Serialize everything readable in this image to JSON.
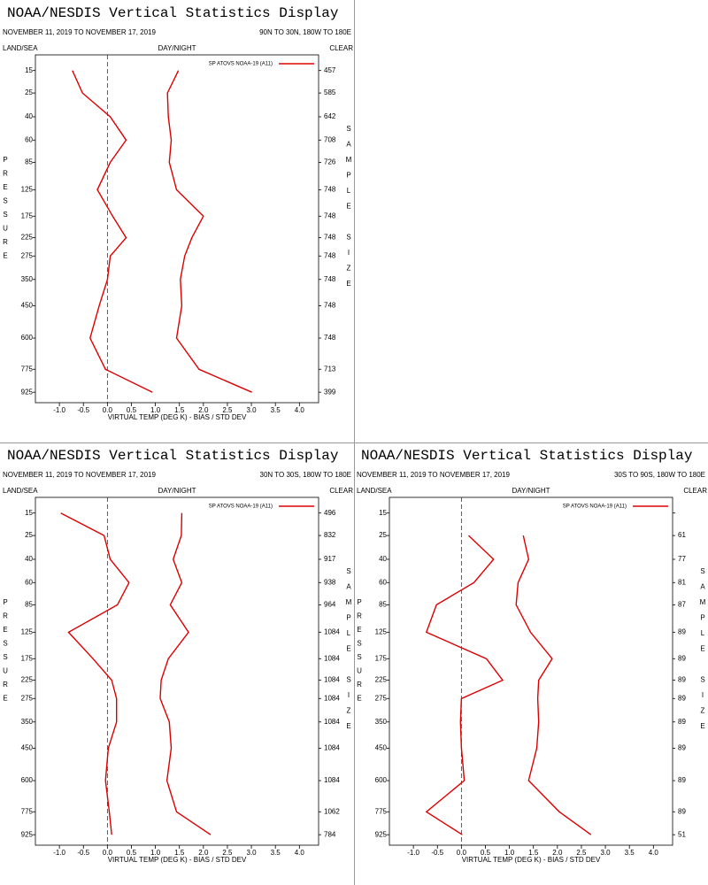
{
  "chart_data": [
    {
      "type": "line",
      "title": "NOAA/NESDIS Vertical Statistics Display",
      "subtitle": "NOVEMBER 11, 2019 TO NOVEMBER 17, 2019",
      "region": "90N TO 30N, 180W TO 180E",
      "land_sea": "LAND/SEA",
      "day_night": "DAY/NIGHT",
      "clear": "CLEAR",
      "y_label": "PRESSURE",
      "y2_label": "SAMPLE SIZE",
      "x_label": "VIRTUAL TEMP (DEG K) - BIAS / STD DEV",
      "legend_label": "SP ATOVS NOAA-19 (A11)",
      "legend_color": "#dd0000",
      "xlim": [
        -1.5,
        4.4
      ],
      "xticks": [
        {
          "value": -1,
          "label": "-1.0"
        },
        -0.5,
        {
          "value": 0,
          "label": "0.0"
        },
        0.5,
        {
          "value": 1,
          "label": "1.0"
        },
        1.5,
        {
          "value": 2,
          "label": "2.0"
        },
        2.5,
        {
          "value": 3,
          "label": "3.0"
        },
        3.5,
        {
          "value": 4,
          "label": "4.0"
        }
      ],
      "ylim": [
        10,
        1000
      ],
      "yscale": "exner",
      "yticks": [
        15,
        25,
        40,
        60,
        85,
        125,
        175,
        225,
        275,
        350,
        450,
        600,
        775,
        925
      ],
      "sample_sizes": [
        457,
        585,
        642,
        708,
        726,
        748,
        748,
        748,
        748,
        748,
        748,
        748,
        713,
        399
      ],
      "zero_line": true,
      "series": [
        {
          "color": "#dd0000",
          "values": [
            -0.73,
            -0.52,
            0.06,
            0.39,
            0.06,
            -0.21,
            0.11,
            0.39,
            0.06,
            0.0,
            -0.17,
            -0.36,
            -0.04,
            0.94
          ]
        },
        {
          "color": "#dd0000",
          "values": [
            1.48,
            1.25,
            1.27,
            1.33,
            1.29,
            1.44,
            2.0,
            1.76,
            1.61,
            1.52,
            1.55,
            1.44,
            1.91,
            3.01
          ]
        }
      ]
    },
    {
      "type": "line",
      "title": "NOAA/NESDIS Vertical Statistics Display",
      "subtitle": "NOVEMBER 11, 2019 TO NOVEMBER 17, 2019",
      "region": "30N TO 30S, 180W TO 180E",
      "land_sea": "LAND/SEA",
      "day_night": "DAY/NIGHT",
      "clear": "CLEAR",
      "y_label": "PRESSURE",
      "y2_label": "SAMPLE SIZE",
      "x_label": "VIRTUAL TEMP (DEG K) - BIAS / STD DEV",
      "legend_label": "SP ATOVS NOAA-19 (A11)",
      "legend_color": "#dd0000",
      "xlim": [
        -1.5,
        4.4
      ],
      "xticks": [
        {
          "value": -1,
          "label": "-1.0"
        },
        -0.5,
        {
          "value": 0,
          "label": "0.0"
        },
        0.5,
        {
          "value": 1,
          "label": "1.0"
        },
        1.5,
        {
          "value": 2,
          "label": "2.0"
        },
        2.5,
        {
          "value": 3,
          "label": "3.0"
        },
        3.5,
        {
          "value": 4,
          "label": "4.0"
        }
      ],
      "ylim": [
        10,
        1000
      ],
      "yscale": "exner",
      "yticks": [
        15,
        25,
        40,
        60,
        85,
        125,
        175,
        225,
        275,
        350,
        450,
        600,
        775,
        925
      ],
      "sample_sizes": [
        496,
        832,
        917,
        938,
        964,
        1084,
        1084,
        1084,
        1084,
        1084,
        1084,
        1084,
        1062,
        784
      ],
      "zero_line": true,
      "series": [
        {
          "color": "#dd0000",
          "values": [
            -0.97,
            -0.07,
            0.06,
            0.45,
            0.21,
            -0.81,
            -0.3,
            0.09,
            0.19,
            0.19,
            0.02,
            -0.04,
            0.04,
            0.09
          ]
        },
        {
          "color": "#dd0000",
          "values": [
            1.55,
            1.54,
            1.37,
            1.55,
            1.31,
            1.69,
            1.27,
            1.12,
            1.1,
            1.29,
            1.33,
            1.24,
            1.44,
            2.15
          ]
        }
      ]
    },
    {
      "type": "line",
      "title": "NOAA/NESDIS Vertical Statistics Display",
      "subtitle": "NOVEMBER 11, 2019 TO NOVEMBER 17, 2019",
      "region": "30S TO 90S, 180W TO 180E",
      "land_sea": "LAND/SEA",
      "day_night": "DAY/NIGHT",
      "clear": "CLEAR",
      "y_label": "PRESSURE",
      "y2_label": "SAMPLE SIZE",
      "x_label": "VIRTUAL TEMP (DEG K) - BIAS / STD DEV",
      "legend_label": "SP ATOVS NOAA-19 (A11)",
      "legend_color": "#dd0000",
      "xlim": [
        -1.5,
        4.4
      ],
      "xticks": [
        {
          "value": -1,
          "label": "-1.0"
        },
        -0.5,
        {
          "value": 0,
          "label": "0.0"
        },
        0.5,
        {
          "value": 1,
          "label": "1.0"
        },
        1.5,
        {
          "value": 2,
          "label": "2.0"
        },
        2.5,
        {
          "value": 3,
          "label": "3.0"
        },
        3.5,
        {
          "value": 4,
          "label": "4.0"
        }
      ],
      "ylim": [
        10,
        1000
      ],
      "yscale": "exner",
      "yticks": [
        15,
        25,
        40,
        60,
        85,
        125,
        175,
        225,
        275,
        350,
        450,
        600,
        775,
        925
      ],
      "sample_sizes": [
        null,
        61,
        77,
        81,
        87,
        89,
        89,
        89,
        89,
        89,
        89,
        89,
        89,
        51
      ],
      "zero_line": true,
      "series": [
        {
          "color": "#dd0000",
          "values": [
            null,
            0.15,
            0.67,
            0.26,
            -0.52,
            -0.73,
            0.52,
            0.86,
            0.0,
            -0.02,
            0.0,
            0.06,
            -0.73,
            0.02
          ]
        },
        {
          "color": "#dd0000",
          "values": [
            null,
            1.29,
            1.4,
            1.18,
            1.14,
            1.44,
            1.89,
            1.61,
            1.59,
            1.61,
            1.57,
            1.4,
            2.04,
            2.7
          ]
        }
      ]
    }
  ]
}
